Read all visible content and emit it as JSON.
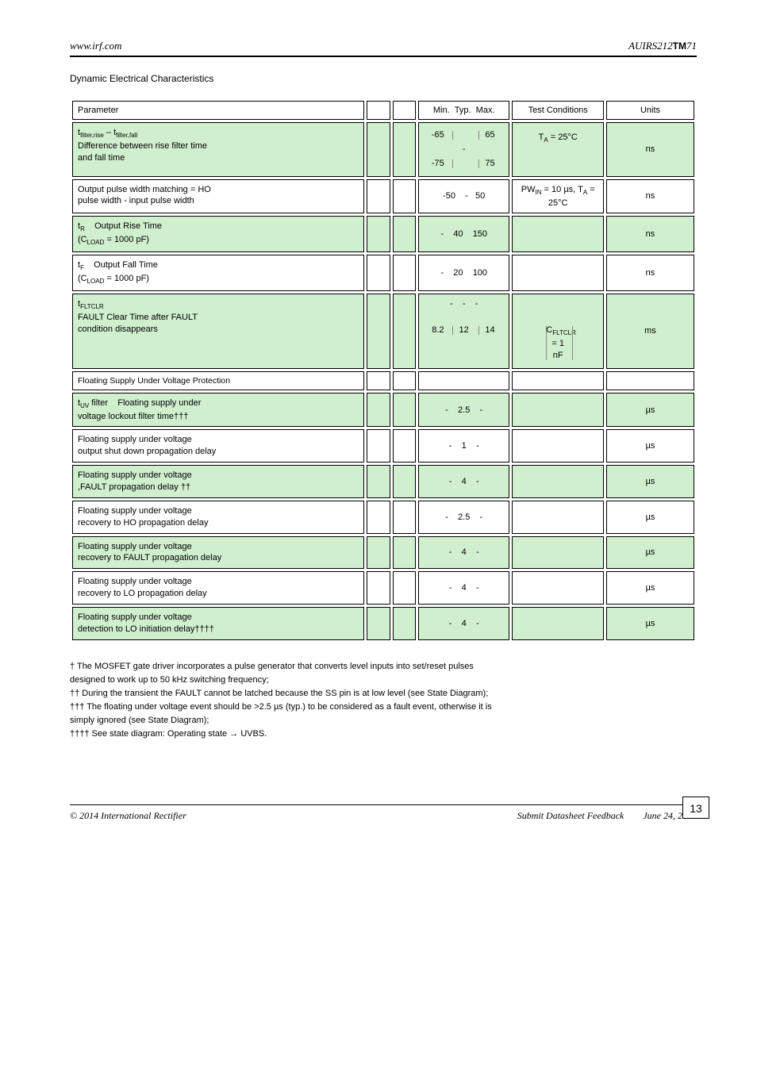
{
  "header": {
    "left": "www.irf.com",
    "right_prefix": "AUIRS212",
    "right_tm": "TM",
    "right_suffix": "71"
  },
  "table_title": "Dynamic Electrical Characteristics",
  "columns": [
    "Parameter",
    "",
    "",
    "Min.  Typ.  Max.",
    "Test Conditions",
    "Units"
  ],
  "rows": [
    {
      "type": "head",
      "cells": [
        "Parameter",
        "",
        "",
        "Min.  Typ.  Max.",
        "Test Conditions",
        "Units"
      ]
    },
    {
      "type": "alt",
      "param_lines": [
        "t<sub>filter,rise</sub> – t<sub>filter,fall</sub>",
        "Difference between rise filter time",
        "and fall time"
      ],
      "sym": "",
      "blank": "",
      "vals": {
        "triple": [
          "-65",
          "",
          "65"
        ],
        "line2": "-",
        "line3": [
          "-75",
          "",
          "75"
        ]
      },
      "cond": {
        "triple": [
          "",
          "",
          ""
        ],
        "line2": [
          "T<sub>A</sub> = 25°C",
          ""
        ],
        "line3": ""
      },
      "units": "ns"
    },
    {
      "type": "white",
      "param_lines": [
        "Output pulse width matching = HO",
        "pulse width - input pulse width"
      ],
      "sym": "",
      "blank": "",
      "vals": "-50    -   50",
      "cond": "PW<sub>IN</sub> = 10 µs, T<sub>A</sub> =25°C",
      "units": "ns"
    },
    {
      "type": "alt",
      "param_lines": [
        "t<sub>R</sub>    Output Rise Time",
        "(C<sub>LOAD</sub> = 1000 pF)"
      ],
      "sym": "",
      "blank": "",
      "vals": "-    40    150",
      "cond": "",
      "units": "ns"
    },
    {
      "type": "white",
      "param_lines": [
        "t<sub>F</sub>    Output Fall Time",
        "(C<sub>LOAD</sub> = 1000 pF)"
      ],
      "sym": "",
      "blank": "",
      "vals": "-    20    100",
      "cond": "",
      "units": "ns"
    },
    {
      "type": "alt",
      "param_lines": [
        "t<sub>FLTCLR</sub>",
        "FAULT Clear Time after FAULT",
        "condition disappears"
      ],
      "sym": "",
      "blank": "",
      "vals": {
        "line1": "-    -    -",
        "line2_triple": [
          "8.2",
          "12",
          "14"
        ]
      },
      "cond": {
        "line1": "",
        "line2_triple": [
          "",
          "C<sub>FLTCLR</sub> = 1 nF",
          ""
        ]
      },
      "units": "ms"
    },
    {
      "type": "section",
      "cells": [
        "Floating Supply Under Voltage Protection",
        "",
        "",
        "",
        "",
        ""
      ]
    },
    {
      "type": "alt",
      "param_lines": [
        "t<sub>UV</sub> filter    Floating supply under",
        "voltage lockout filter time†††"
      ],
      "sym": "",
      "blank": "",
      "vals": "-    2.5    -",
      "cond": "",
      "units": "µs"
    },
    {
      "type": "white",
      "param_lines": [
        "Floating supply under voltage",
        "output shut down propagation delay"
      ],
      "sym": "",
      "blank": "",
      "vals": "-    1    -",
      "cond": "",
      "units": "µs"
    },
    {
      "type": "alt",
      "param_lines": [
        "Floating supply under voltage",
        ",FAULT propagation delay ††"
      ],
      "sym": "",
      "blank": "",
      "vals": "-    4    -",
      "cond": "",
      "units": "µs"
    },
    {
      "type": "white",
      "param_lines": [
        "Floating supply under voltage",
        "recovery to HO propagation delay"
      ],
      "sym": "",
      "blank": "",
      "vals": "-    2.5    -",
      "cond": "",
      "units": "µs"
    },
    {
      "type": "alt",
      "param_lines": [
        "Floating supply under voltage",
        "recovery to FAULT propagation delay"
      ],
      "sym": "",
      "blank": "",
      "vals": "-    4    -",
      "cond": "",
      "units": "µs"
    },
    {
      "type": "white",
      "param_lines": [
        "Floating supply under voltage",
        "recovery to LO propagation delay"
      ],
      "sym": "",
      "blank": "",
      "vals": "-    4    -",
      "cond": "",
      "units": "µs"
    },
    {
      "type": "alt",
      "param_lines": [
        "Floating supply under voltage",
        "detection to LO initiation delay††††"
      ],
      "sym": "",
      "blank": "",
      "vals": "-    4    -",
      "cond": "",
      "units": "µs"
    }
  ],
  "row_bg_alt": "#d0efce",
  "row_bg_white": "#ffffff",
  "footnotes": [
    "† The MOSFET gate driver incorporates a pulse generator that converts level inputs into set/reset pulses",
    "designed to work up to 50 kHz switching frequency;",
    "†† During the transient the FAULT cannot be latched because the SS pin is at low level (see State Diagram);",
    "††† The floating under voltage event should be >2.5 µs (typ.) to be considered as a fault event, otherwise it is",
    "simply ignored (see State Diagram);",
    "†††† See state diagram: Operating state → UVBS."
  ],
  "footer": {
    "left": "© 2014 International Rectifier",
    "center_prefix": "Submit Datasheet Feedback",
    "date": "June 24, 2014"
  },
  "page_number": "13"
}
